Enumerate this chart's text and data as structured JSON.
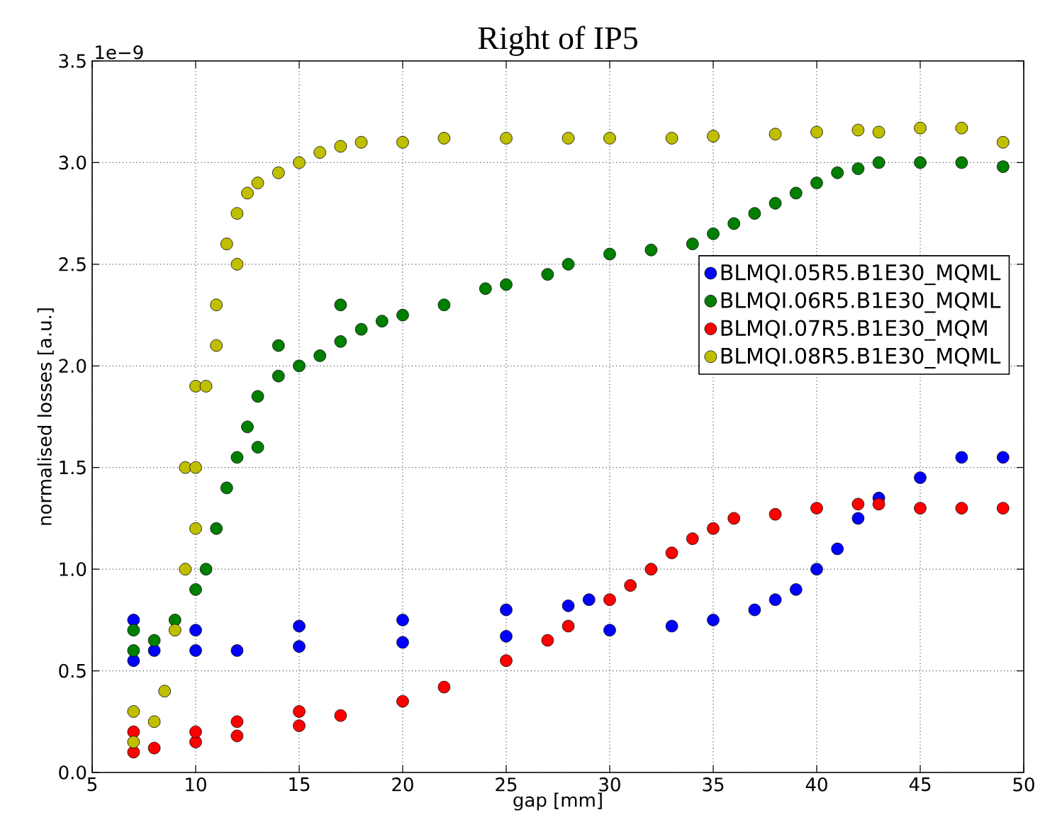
{
  "chart_data": {
    "type": "scatter",
    "title": "Right of IP5",
    "xlabel": "gap [mm]",
    "ylabel": "normalised losses [a.u.]",
    "annotations": [
      "1e−9"
    ],
    "xlim": [
      5,
      50
    ],
    "xticks": [
      5,
      10,
      15,
      20,
      25,
      30,
      35,
      40,
      45,
      50
    ],
    "ylim": [
      0,
      3.5
    ],
    "yticks": [
      {
        "value": 0,
        "label": "0.0"
      },
      {
        "value": 0.5,
        "label": "0.5"
      },
      {
        "value": 1,
        "label": "1.0"
      },
      {
        "value": 1.5,
        "label": "1.5"
      },
      {
        "value": 2,
        "label": "2.0"
      },
      {
        "value": 2.5,
        "label": "2.5"
      },
      {
        "value": 3,
        "label": "3.0"
      },
      {
        "value": 3.5,
        "label": "3.5"
      }
    ],
    "grid": true,
    "legend": "right",
    "marker": "circle",
    "series": [
      {
        "name": "BLMQI.05R5.B1E30_MQML",
        "color": "#0000ff",
        "x": [
          7,
          7,
          8,
          10,
          10,
          12,
          15,
          15,
          20,
          20,
          25,
          25,
          28,
          30,
          29,
          33,
          35,
          37,
          38,
          39,
          40,
          41,
          42,
          43,
          45,
          47,
          49
        ],
        "values": [
          0.55,
          0.75,
          0.6,
          0.6,
          0.7,
          0.6,
          0.62,
          0.72,
          0.64,
          0.75,
          0.67,
          0.8,
          0.82,
          0.7,
          0.85,
          0.72,
          0.75,
          0.8,
          0.85,
          0.9,
          1.0,
          1.1,
          1.25,
          1.35,
          1.45,
          1.55,
          1.55
        ]
      },
      {
        "name": "BLMQI.06R5.B1E30_MQML",
        "color": "#007f00",
        "x": [
          7,
          7,
          8,
          9,
          10,
          10.5,
          11,
          11.5,
          12,
          12.5,
          13,
          13,
          14,
          14,
          15,
          16,
          17,
          17,
          18,
          19,
          20,
          22,
          24,
          25,
          27,
          28,
          30,
          32,
          34,
          35,
          36,
          37,
          38,
          39,
          40,
          41,
          42,
          43,
          45,
          47,
          49
        ],
        "values": [
          0.6,
          0.7,
          0.65,
          0.75,
          0.9,
          1.0,
          1.2,
          1.4,
          1.55,
          1.7,
          1.85,
          1.6,
          1.95,
          2.1,
          2.0,
          2.05,
          2.12,
          2.3,
          2.18,
          2.22,
          2.25,
          2.3,
          2.38,
          2.4,
          2.45,
          2.5,
          2.55,
          2.57,
          2.6,
          2.65,
          2.7,
          2.75,
          2.8,
          2.85,
          2.9,
          2.95,
          2.97,
          3.0,
          3.0,
          3.0,
          2.98
        ]
      },
      {
        "name": "BLMQI.07R5.B1E30_MQM",
        "color": "#ff0000",
        "x": [
          7,
          7,
          8,
          10,
          10,
          12,
          12,
          15,
          15,
          17,
          20,
          22,
          25,
          27,
          28,
          30,
          31,
          32,
          33,
          34,
          35,
          36,
          38,
          40,
          42,
          43,
          45,
          47,
          49
        ],
        "values": [
          0.1,
          0.2,
          0.12,
          0.15,
          0.2,
          0.18,
          0.25,
          0.23,
          0.3,
          0.28,
          0.35,
          0.42,
          0.55,
          0.65,
          0.72,
          0.85,
          0.92,
          1.0,
          1.08,
          1.15,
          1.2,
          1.25,
          1.27,
          1.3,
          1.32,
          1.32,
          1.3,
          1.3,
          1.3
        ]
      },
      {
        "name": "BLMQI.08R5.B1E30_MQML",
        "color": "#bfbf00",
        "x": [
          7,
          7,
          8,
          8.5,
          9,
          9.5,
          9.5,
          10,
          10,
          10,
          10.5,
          11,
          11,
          11.5,
          12,
          12,
          12.5,
          13,
          14,
          15,
          16,
          17,
          18,
          20,
          22,
          25,
          28,
          30,
          33,
          35,
          38,
          40,
          42,
          43,
          45,
          47,
          49
        ],
        "values": [
          0.15,
          0.3,
          0.25,
          0.4,
          0.7,
          1.0,
          1.5,
          1.2,
          1.5,
          1.9,
          1.9,
          2.1,
          2.3,
          2.6,
          2.5,
          2.75,
          2.85,
          2.9,
          2.95,
          3.0,
          3.05,
          3.08,
          3.1,
          3.1,
          3.12,
          3.12,
          3.12,
          3.12,
          3.12,
          3.13,
          3.14,
          3.15,
          3.16,
          3.15,
          3.17,
          3.17,
          3.1
        ]
      }
    ]
  }
}
